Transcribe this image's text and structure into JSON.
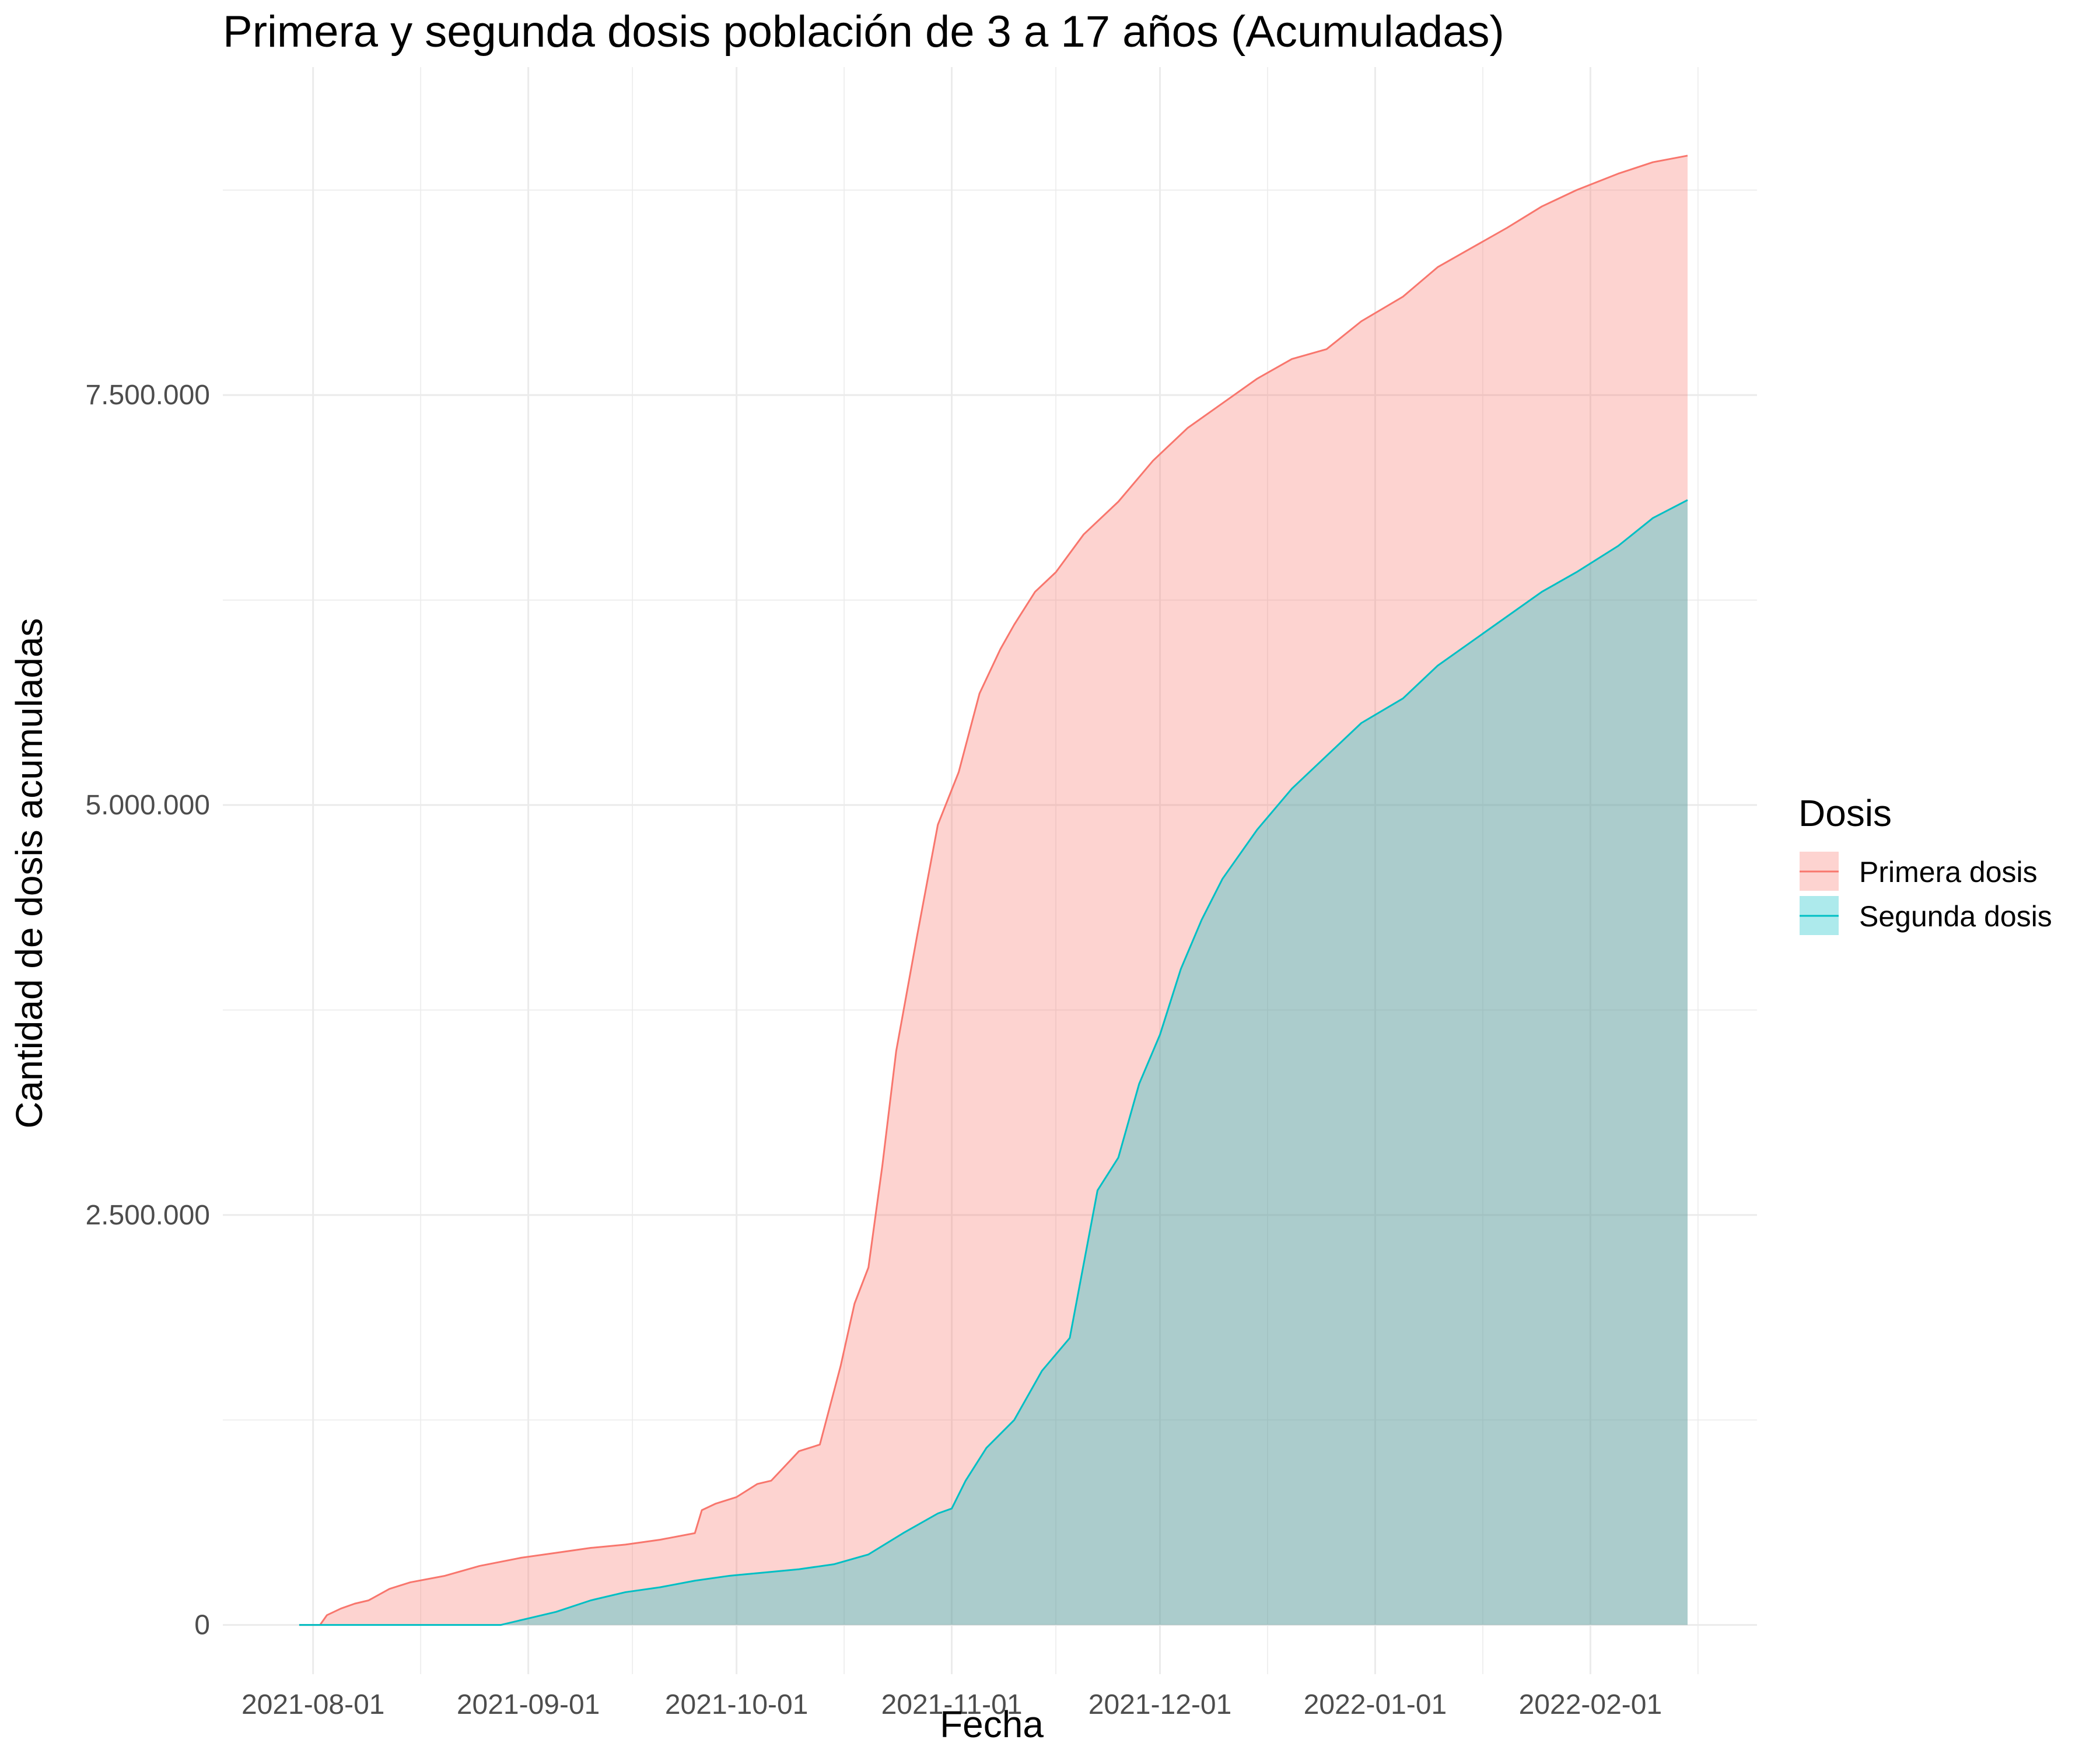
{
  "chart_data": {
    "type": "area",
    "title": "Primera y segunda dosis población de 3 a 17 años (Acumuladas)",
    "xlabel": "Fecha",
    "ylabel": "Cantidad de dosis acumuladas",
    "x_tick_labels": [
      "2021-08-01",
      "2021-09-01",
      "2021-10-01",
      "2021-11-01",
      "2021-12-01",
      "2022-01-01",
      "2022-02-01"
    ],
    "y_ticks": [
      0,
      2500000,
      5000000,
      7500000
    ],
    "y_tick_labels": [
      "0",
      "2.500.000",
      "5.000.000",
      "7.500.000"
    ],
    "xlim": [
      "2021-07-19",
      "2022-02-25"
    ],
    "ylim": [
      -300000,
      9500000
    ],
    "grid": true,
    "legend": {
      "title": "Dosis",
      "position": "right",
      "items": [
        {
          "label": "Primera dosis",
          "line_color": "#F8766D",
          "fill_color": "#F8766D"
        },
        {
          "label": "Segunda dosis",
          "line_color": "#00BFC4",
          "fill_color": "#00BFC4"
        }
      ]
    },
    "series": [
      {
        "name": "Primera dosis",
        "color": "#F8766D",
        "points": [
          [
            "2021-07-30",
            0
          ],
          [
            "2021-08-02",
            0
          ],
          [
            "2021-08-03",
            60000
          ],
          [
            "2021-08-05",
            100000
          ],
          [
            "2021-08-07",
            130000
          ],
          [
            "2021-08-09",
            150000
          ],
          [
            "2021-08-12",
            220000
          ],
          [
            "2021-08-15",
            260000
          ],
          [
            "2021-08-20",
            300000
          ],
          [
            "2021-08-25",
            360000
          ],
          [
            "2021-08-31",
            410000
          ],
          [
            "2021-09-05",
            440000
          ],
          [
            "2021-09-10",
            470000
          ],
          [
            "2021-09-15",
            490000
          ],
          [
            "2021-09-20",
            520000
          ],
          [
            "2021-09-25",
            560000
          ],
          [
            "2021-09-26",
            700000
          ],
          [
            "2021-09-28",
            740000
          ],
          [
            "2021-10-01",
            780000
          ],
          [
            "2021-10-04",
            860000
          ],
          [
            "2021-10-06",
            880000
          ],
          [
            "2021-10-08",
            970000
          ],
          [
            "2021-10-10",
            1060000
          ],
          [
            "2021-10-13",
            1100000
          ],
          [
            "2021-10-16",
            1580000
          ],
          [
            "2021-10-18",
            1960000
          ],
          [
            "2021-10-20",
            2180000
          ],
          [
            "2021-10-22",
            2800000
          ],
          [
            "2021-10-24",
            3500000
          ],
          [
            "2021-10-27",
            4200000
          ],
          [
            "2021-10-30",
            4880000
          ],
          [
            "2021-11-02",
            5200000
          ],
          [
            "2021-11-05",
            5680000
          ],
          [
            "2021-11-08",
            5950000
          ],
          [
            "2021-11-10",
            6100000
          ],
          [
            "2021-11-13",
            6300000
          ],
          [
            "2021-11-16",
            6420000
          ],
          [
            "2021-11-20",
            6650000
          ],
          [
            "2021-11-25",
            6850000
          ],
          [
            "2021-11-30",
            7100000
          ],
          [
            "2021-12-05",
            7300000
          ],
          [
            "2021-12-10",
            7450000
          ],
          [
            "2021-12-15",
            7600000
          ],
          [
            "2021-12-20",
            7720000
          ],
          [
            "2021-12-25",
            7780000
          ],
          [
            "2021-12-30",
            7950000
          ],
          [
            "2022-01-05",
            8100000
          ],
          [
            "2022-01-10",
            8280000
          ],
          [
            "2022-01-15",
            8400000
          ],
          [
            "2022-01-20",
            8520000
          ],
          [
            "2022-01-25",
            8650000
          ],
          [
            "2022-01-30",
            8750000
          ],
          [
            "2022-02-05",
            8850000
          ],
          [
            "2022-02-10",
            8920000
          ],
          [
            "2022-02-15",
            8960000
          ]
        ]
      },
      {
        "name": "Segunda dosis",
        "color": "#00BFC4",
        "points": [
          [
            "2021-07-30",
            0
          ],
          [
            "2021-08-25",
            0
          ],
          [
            "2021-08-28",
            0
          ],
          [
            "2021-09-01",
            40000
          ],
          [
            "2021-09-05",
            80000
          ],
          [
            "2021-09-10",
            150000
          ],
          [
            "2021-09-15",
            200000
          ],
          [
            "2021-09-20",
            230000
          ],
          [
            "2021-09-25",
            270000
          ],
          [
            "2021-09-30",
            300000
          ],
          [
            "2021-10-05",
            320000
          ],
          [
            "2021-10-10",
            340000
          ],
          [
            "2021-10-15",
            370000
          ],
          [
            "2021-10-20",
            430000
          ],
          [
            "2021-10-25",
            560000
          ],
          [
            "2021-10-30",
            680000
          ],
          [
            "2021-11-01",
            710000
          ],
          [
            "2021-11-03",
            880000
          ],
          [
            "2021-11-06",
            1080000
          ],
          [
            "2021-11-10",
            1250000
          ],
          [
            "2021-11-14",
            1550000
          ],
          [
            "2021-11-18",
            1750000
          ],
          [
            "2021-11-20",
            2200000
          ],
          [
            "2021-11-22",
            2650000
          ],
          [
            "2021-11-25",
            2850000
          ],
          [
            "2021-11-28",
            3300000
          ],
          [
            "2021-12-01",
            3600000
          ],
          [
            "2021-12-04",
            4000000
          ],
          [
            "2021-12-07",
            4300000
          ],
          [
            "2021-12-10",
            4550000
          ],
          [
            "2021-12-15",
            4850000
          ],
          [
            "2021-12-20",
            5100000
          ],
          [
            "2021-12-25",
            5300000
          ],
          [
            "2021-12-30",
            5500000
          ],
          [
            "2022-01-05",
            5650000
          ],
          [
            "2022-01-10",
            5850000
          ],
          [
            "2022-01-15",
            6000000
          ],
          [
            "2022-01-20",
            6150000
          ],
          [
            "2022-01-25",
            6300000
          ],
          [
            "2022-01-30",
            6420000
          ],
          [
            "2022-02-05",
            6580000
          ],
          [
            "2022-02-10",
            6750000
          ],
          [
            "2022-02-15",
            6860000
          ]
        ]
      }
    ]
  }
}
